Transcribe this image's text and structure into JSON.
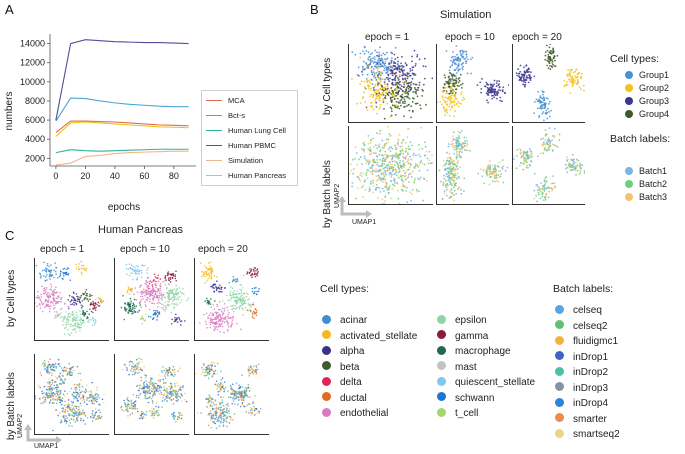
{
  "panels": {
    "a": "A",
    "b": "B",
    "c": "C"
  },
  "chart_data": {
    "type": "line",
    "title": "",
    "xlabel": "epochs",
    "ylabel": "numbers",
    "x": [
      0,
      10,
      20,
      30,
      40,
      50,
      60,
      70,
      80,
      90
    ],
    "xticks": [
      "0",
      "20",
      "40",
      "60",
      "80"
    ],
    "yticks": [
      "2000",
      "4000",
      "6000",
      "8000",
      "10000",
      "12000",
      "14000"
    ],
    "xlim": [
      -4,
      95
    ],
    "ylim": [
      1200,
      15000
    ],
    "legend_position": "center-right",
    "series": [
      {
        "name": "MCA",
        "color": "#e8694f",
        "values": [
          4700,
          5900,
          5900,
          5850,
          5800,
          5700,
          5600,
          5500,
          5450,
          5400
        ]
      },
      {
        "name": "Bct-s",
        "color": "#4ea3d5",
        "values": [
          5900,
          8300,
          8250,
          8000,
          7800,
          7650,
          7550,
          7450,
          7400,
          7400
        ]
      },
      {
        "name": "Human Lung Cell",
        "color": "#2fb39a",
        "values": [
          2600,
          2900,
          2800,
          2750,
          2800,
          2850,
          2900,
          2950,
          2950,
          2950
        ]
      },
      {
        "name": "Human PBMC",
        "color": "#4f4f9c",
        "values": [
          6000,
          14000,
          14400,
          14300,
          14200,
          14150,
          14100,
          14100,
          14050,
          14000
        ]
      },
      {
        "name": "Simulation",
        "color": "#f3b38c",
        "values": [
          1300,
          1500,
          2200,
          2300,
          2500,
          2600,
          2650,
          2700,
          2750,
          2750
        ]
      },
      {
        "name": "Human Pancreas",
        "color": "#e6c619",
        "values": [
          4300,
          5700,
          5800,
          5700,
          5600,
          5500,
          5400,
          5300,
          5250,
          5200
        ]
      }
    ]
  },
  "simulation": {
    "title": "Simulation",
    "epochs": [
      "epoch = 1",
      "epoch = 10",
      "epoch = 20"
    ],
    "row_labels": [
      "by Cell types",
      "by Batch labels"
    ],
    "axis_x": "UMAP1",
    "axis_y": "UMAP2",
    "cell_types_title": "Cell types:",
    "cell_types": [
      {
        "label": "Group1",
        "color": "#4a8fd6"
      },
      {
        "label": "Group2",
        "color": "#f2c11d"
      },
      {
        "label": "Group3",
        "color": "#3c3591"
      },
      {
        "label": "Group4",
        "color": "#3d5a2d"
      }
    ],
    "batch_title": "Batch labels:",
    "batch_labels": [
      {
        "label": "Batch1",
        "color": "#78b6e4"
      },
      {
        "label": "Batch2",
        "color": "#6fcf7a"
      },
      {
        "label": "Batch3",
        "color": "#f2c46a"
      }
    ]
  },
  "pancreas": {
    "title": "Human Pancreas",
    "epochs": [
      "epoch = 1",
      "epoch = 10",
      "epoch = 20"
    ],
    "row_labels": [
      "by Cell types",
      "by Batch labels"
    ],
    "axis_x": "UMAP1",
    "axis_y": "UMAP2",
    "cell_types_title": "Cell types:",
    "cell_types_col1": [
      {
        "label": "acinar",
        "color": "#3f8fd0"
      },
      {
        "label": "activated_stellate",
        "color": "#f2b91e"
      },
      {
        "label": "alpha",
        "color": "#3b2f8c"
      },
      {
        "label": "beta",
        "color": "#3e5c2c"
      },
      {
        "label": "delta",
        "color": "#e0245e"
      },
      {
        "label": "ductal",
        "color": "#e06a1d"
      },
      {
        "label": "endothelial",
        "color": "#d77bc2"
      }
    ],
    "cell_types_col2": [
      {
        "label": "epsilon",
        "color": "#8ed6a8"
      },
      {
        "label": "gamma",
        "color": "#8c1a3b"
      },
      {
        "label": "macrophage",
        "color": "#1f6a4e"
      },
      {
        "label": "mast",
        "color": "#c2c2c2"
      },
      {
        "label": "quiescent_stellate",
        "color": "#7fc8ee"
      },
      {
        "label": "schwann",
        "color": "#1976d2"
      },
      {
        "label": "t_cell",
        "color": "#a6d66a"
      }
    ],
    "batch_title": "Batch labels:",
    "batch_labels": [
      {
        "label": "celseq",
        "color": "#5aa5e0"
      },
      {
        "label": "celseq2",
        "color": "#5fc36b"
      },
      {
        "label": "fluidigmc1",
        "color": "#f2b53c"
      },
      {
        "label": "inDrop1",
        "color": "#3f64c4"
      },
      {
        "label": "inDrop2",
        "color": "#4dbfa8"
      },
      {
        "label": "inDrop3",
        "color": "#8a8fa6"
      },
      {
        "label": "inDrop4",
        "color": "#2d84d8"
      },
      {
        "label": "smarter",
        "color": "#f08a4b"
      },
      {
        "label": "smartseq2",
        "color": "#ecd58a"
      }
    ]
  }
}
